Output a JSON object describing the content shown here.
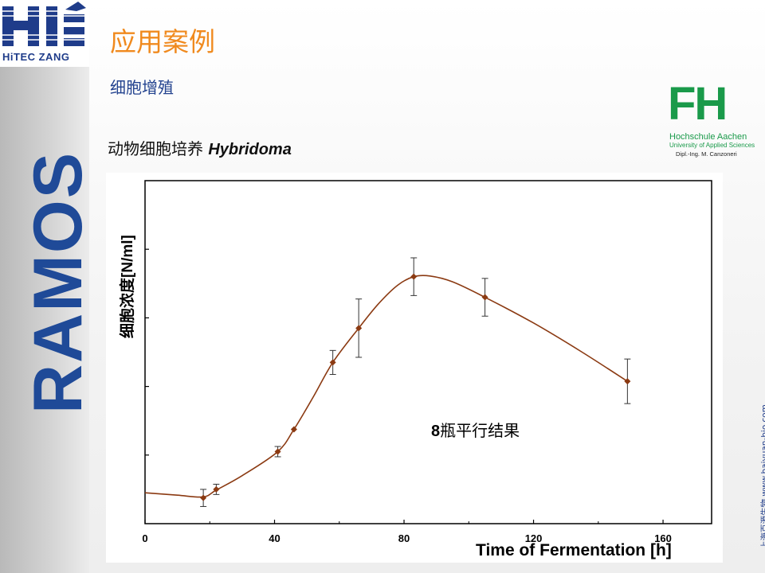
{
  "brand": {
    "logo_text": "HiTEC ZANG",
    "side_text": "RAMOS"
  },
  "page": {
    "title": "应用案例",
    "subtitle": "细胞增殖",
    "section_prefix": "动物细胞培养",
    "section_species": "Hybridoma",
    "annotation_num": "8",
    "annotation_text": "瓶平行结果"
  },
  "fh_logo": {
    "mark": "FH",
    "line1": "Hochschule Aachen",
    "line2": "University of Applied Sciences",
    "line3": "Dipl.-Ing. M. Canzoneri"
  },
  "footer": {
    "vertical_url": "上海百源生物 www.baiyuan-bio.com"
  },
  "colors": {
    "accent": "#f08a1e",
    "brand_blue": "#1f4a98",
    "data": "#8b3a12",
    "fh_green": "#1a9a4a"
  },
  "chart_data": {
    "type": "line",
    "xlabel": "Time of Fermentation [h]",
    "ylabel_cn": "细胞浓度",
    "ylabel_unit": "[N/ml]",
    "x_ticks": [
      "0",
      "40",
      "80",
      "120",
      "160"
    ],
    "xlim": [
      0,
      175
    ],
    "ylim": [
      0,
      100
    ],
    "y_tick_values": [
      20,
      40,
      60,
      80
    ],
    "y_tick_labels_shown": false,
    "grid": false,
    "series": [
      {
        "x": [
          18,
          22,
          41,
          46,
          58,
          66,
          83,
          105,
          149
        ],
        "y": [
          7.5,
          10,
          21,
          27.5,
          47,
          57,
          72,
          66,
          41.5
        ],
        "err": [
          2.5,
          1.5,
          1.5,
          0,
          3.5,
          8.5,
          5.5,
          5.5,
          6.5
        ]
      }
    ],
    "curve_x": [
      0,
      10,
      18,
      22,
      30,
      41,
      46,
      52,
      58,
      66,
      72,
      78,
      83,
      88,
      95,
      105,
      120,
      135,
      149
    ],
    "curve_y": [
      9,
      8.3,
      7.8,
      9.8,
      14,
      21,
      27.5,
      37,
      47,
      57,
      64,
      69.5,
      72,
      72.2,
      70.5,
      66,
      58.5,
      50,
      41.5
    ]
  }
}
